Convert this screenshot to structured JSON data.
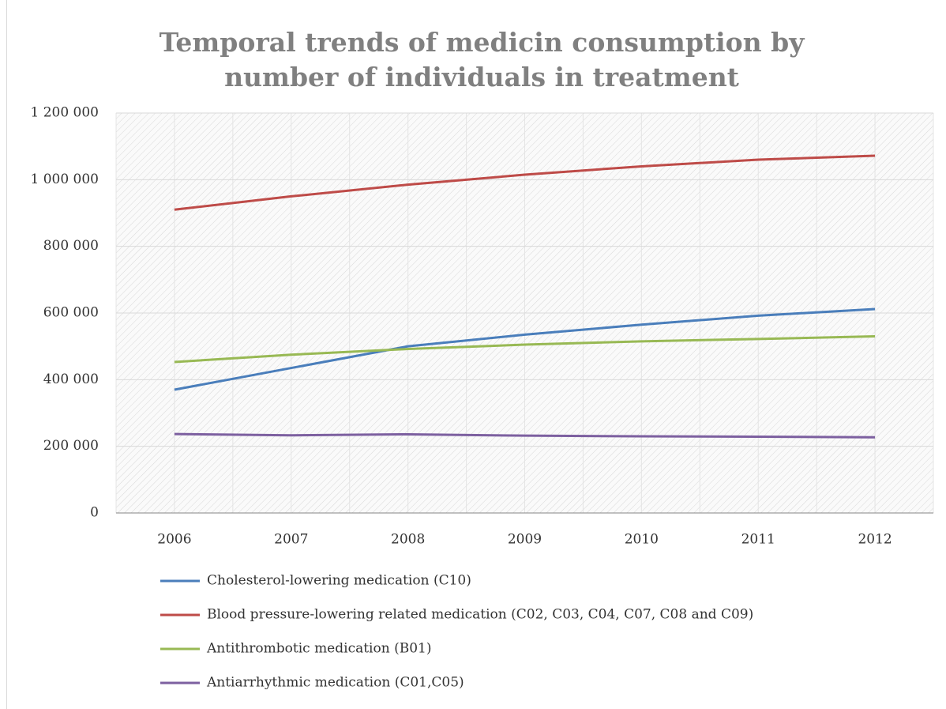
{
  "chart_data": {
    "type": "line",
    "title": "Temporal trends of medicin consumption by number of individuals in treatment",
    "categories": [
      "2006",
      "2007",
      "2008",
      "2009",
      "2010",
      "2011",
      "2012"
    ],
    "series": [
      {
        "name": "Cholesterol-lowering medication (C10)",
        "color": "#4a7ebb",
        "values": [
          370000,
          435000,
          500000,
          535000,
          565000,
          592000,
          612000
        ]
      },
      {
        "name": "Blood pressure-lowering related medication (C02, C03, C04, C07, C08 and C09)",
        "color": "#be4b48",
        "values": [
          910000,
          950000,
          985000,
          1015000,
          1040000,
          1060000,
          1072000
        ]
      },
      {
        "name": "Antithrombotic medication (B01)",
        "color": "#98b954",
        "values": [
          453000,
          475000,
          492000,
          505000,
          515000,
          522000,
          530000
        ]
      },
      {
        "name": "Antiarrhythmic medication (C01,C05)",
        "color": "#7d60a0",
        "values": [
          237000,
          233000,
          236000,
          232000,
          230000,
          229000,
          227000
        ]
      }
    ],
    "ylim": [
      0,
      1200000
    ],
    "yticks": [
      0,
      {
        "value": 200000,
        "label": "200 000"
      },
      {
        "value": 400000,
        "label": "400 000"
      },
      {
        "value": 600000,
        "label": "600 000"
      },
      {
        "value": 800000,
        "label": "800 000"
      },
      {
        "value": 1000000,
        "label": "1 000 000"
      },
      {
        "value": 1200000,
        "label": "1 200 000"
      }
    ],
    "grid": true,
    "legend": "bottom"
  }
}
